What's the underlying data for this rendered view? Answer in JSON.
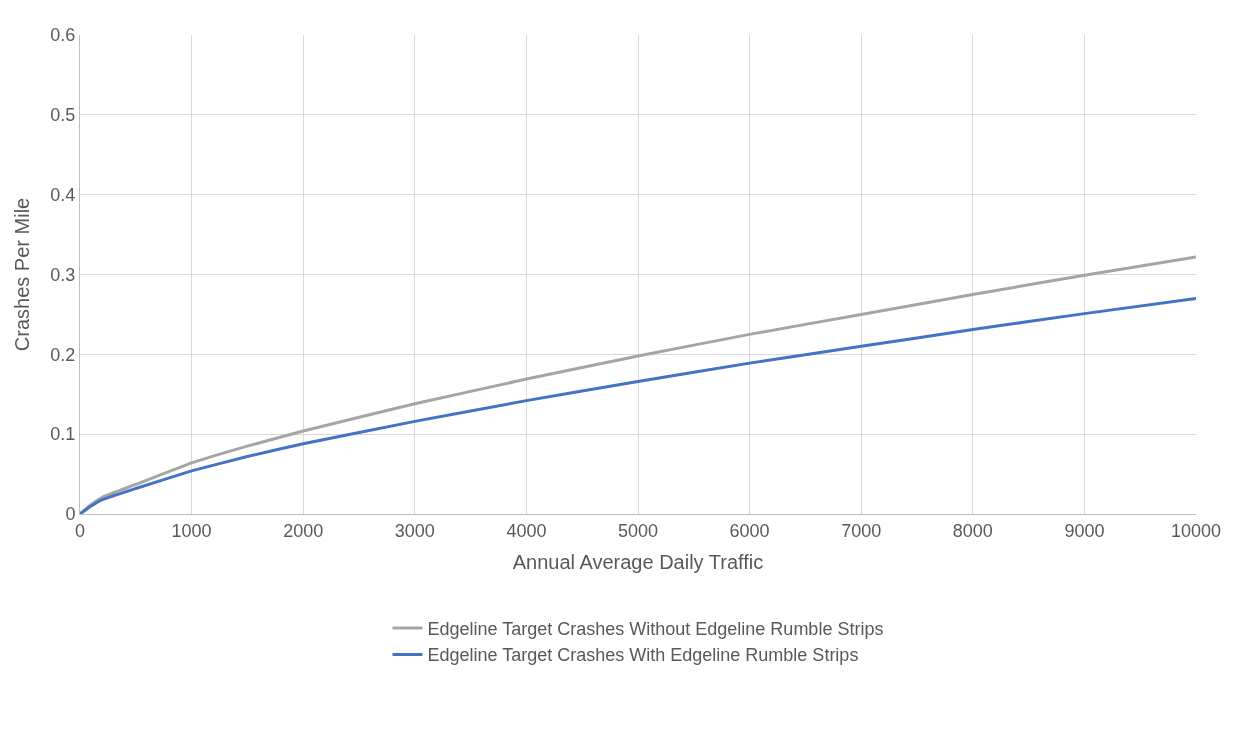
{
  "chart_data": {
    "type": "line",
    "xlabel": "Annual Average Daily Traffic",
    "ylabel": "Crashes Per Mile",
    "x": [
      0,
      100,
      200,
      500,
      1000,
      1500,
      2000,
      3000,
      4000,
      5000,
      6000,
      7000,
      8000,
      9000,
      10000
    ],
    "series": [
      {
        "name": "Edgeline Target Crashes Without Edgeline Rumble Strips",
        "color": "#a5a5a5",
        "values": [
          0,
          0.012,
          0.021,
          0.037,
          0.064,
          0.085,
          0.104,
          0.138,
          0.169,
          0.198,
          0.225,
          0.25,
          0.275,
          0.299,
          0.322
        ]
      },
      {
        "name": "Edgeline Target Crashes With Edgeline Rumble Strips",
        "color": "#4472c4",
        "values": [
          0,
          0.01,
          0.018,
          0.032,
          0.054,
          0.072,
          0.088,
          0.116,
          0.142,
          0.166,
          0.189,
          0.21,
          0.231,
          0.251,
          0.27
        ]
      }
    ],
    "xlim": [
      0,
      10000
    ],
    "xticks": [
      0,
      1000,
      2000,
      3000,
      4000,
      5000,
      6000,
      7000,
      8000,
      9000,
      10000
    ],
    "ylim": [
      0,
      0.6
    ],
    "yticks": [
      0,
      0.1,
      0.2,
      0.3,
      0.4,
      0.5,
      0.6
    ],
    "grid": true,
    "legend": "bottom",
    "marker": "none",
    "line_style": "solid"
  }
}
